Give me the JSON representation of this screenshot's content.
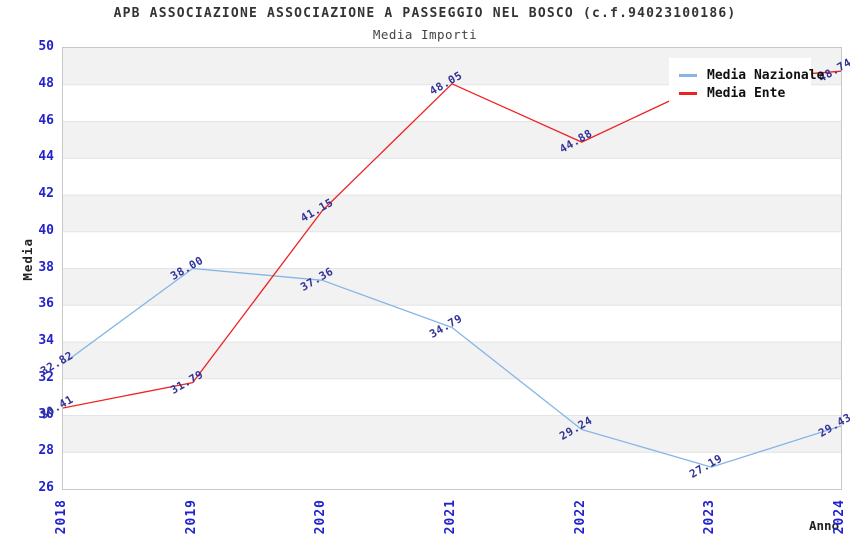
{
  "header": {
    "title": "APB ASSOCIAZIONE ASSOCIAZIONE A PASSEGGIO NEL BOSCO (c.f.94023100186)",
    "subtitle": "Media Importi"
  },
  "chart_data": {
    "type": "line",
    "title": "APB ASSOCIAZIONE ASSOCIAZIONE A PASSEGGIO NEL BOSCO (c.f.94023100186)",
    "subtitle": "Media Importi",
    "xlabel": "Anno",
    "ylabel": "Media",
    "categories": [
      "2018",
      "2019",
      "2020",
      "2021",
      "2022",
      "2023",
      "2024"
    ],
    "series": [
      {
        "name": "Media Nazionale",
        "color": "#85b5e7",
        "values": [
          32.82,
          38.0,
          37.36,
          34.79,
          29.24,
          27.19,
          29.43
        ]
      },
      {
        "name": "Media Ente",
        "color": "#ee2222",
        "values": [
          30.41,
          31.79,
          41.15,
          48.05,
          44.88,
          48.18,
          48.74
        ]
      }
    ],
    "ylim": [
      26,
      50
    ],
    "y_tick_step": 2,
    "y_ticks": [
      26,
      28,
      30,
      32,
      34,
      36,
      38,
      40,
      42,
      44,
      46,
      48,
      50
    ],
    "grid": "horizontal-alternating-bands",
    "band_color": "#f2f2f2",
    "gridline_color": "#e4e4e4",
    "tick_color": "#2222cc",
    "point_label_color": "#333399",
    "legend_position": "top-right",
    "legend_background": "#ffffff"
  }
}
